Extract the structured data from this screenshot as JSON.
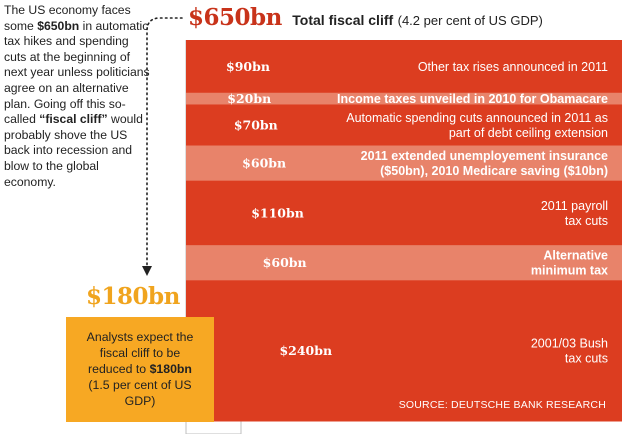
{
  "intro": {
    "part1": "The US economy faces some ",
    "amount": "$650bn",
    "part2": " in automatic tax hikes and spending cuts at the beginning of next year unless politicians agree on an alternative plan. Going off this so-called ",
    "term": "“fiscal cliff”",
    "part3": " would probably shove the US back into recession and blow to the global economy."
  },
  "total": {
    "amount": "$650bn",
    "label": "Total fiscal cliff",
    "note": "(4.2 per cent of US GDP)"
  },
  "reduced": {
    "amount": "$180bn",
    "text_part1": "Analysts expect the fiscal cliff to be reduced to ",
    "text_bold": "$180bn",
    "text_part2": " (1.5 per cent of US GDP)"
  },
  "source": "SOURCE: DEUTSCHE BANK RESEARCH",
  "colors": {
    "dark_red": "#dc3d20",
    "light_orange": "#e8836a",
    "text_red": "#c8331a",
    "gold": "#f7a823"
  },
  "chart_data": {
    "type": "bar",
    "title": "Total fiscal cliff",
    "total": 650,
    "unit": "$bn",
    "segments": [
      {
        "value": 90,
        "amount_label": "$90bn",
        "lines": [
          "Other tax rises announced in 2011"
        ],
        "style": "dark",
        "bold": false
      },
      {
        "value": 20,
        "amount_label": "$20bn",
        "lines": [
          "Income taxes unveiled in 2010 for Obamacare"
        ],
        "style": "light",
        "bold": true
      },
      {
        "value": 70,
        "amount_label": "$70bn",
        "lines": [
          "Automatic spending cuts announced in 2011 as",
          "part of debt ceiling extension"
        ],
        "style": "dark",
        "bold": false
      },
      {
        "value": 60,
        "amount_label": "$60bn",
        "lines": [
          "2011 extended unemployement insurance",
          "($50bn), 2010 Medicare saving ($10bn)"
        ],
        "style": "light",
        "bold": true
      },
      {
        "value": 110,
        "amount_label": "$110bn",
        "lines": [
          "2011 payroll",
          "tax cuts"
        ],
        "style": "dark",
        "bold": false
      },
      {
        "value": 60,
        "amount_label": "$60bn",
        "lines": [
          "Alternative",
          "minimum tax"
        ],
        "style": "light",
        "bold": true
      },
      {
        "value": 240,
        "amount_label": "$240bn",
        "lines": [
          "2001/03 Bush",
          "tax cuts"
        ],
        "style": "dark",
        "bold": false
      }
    ]
  }
}
